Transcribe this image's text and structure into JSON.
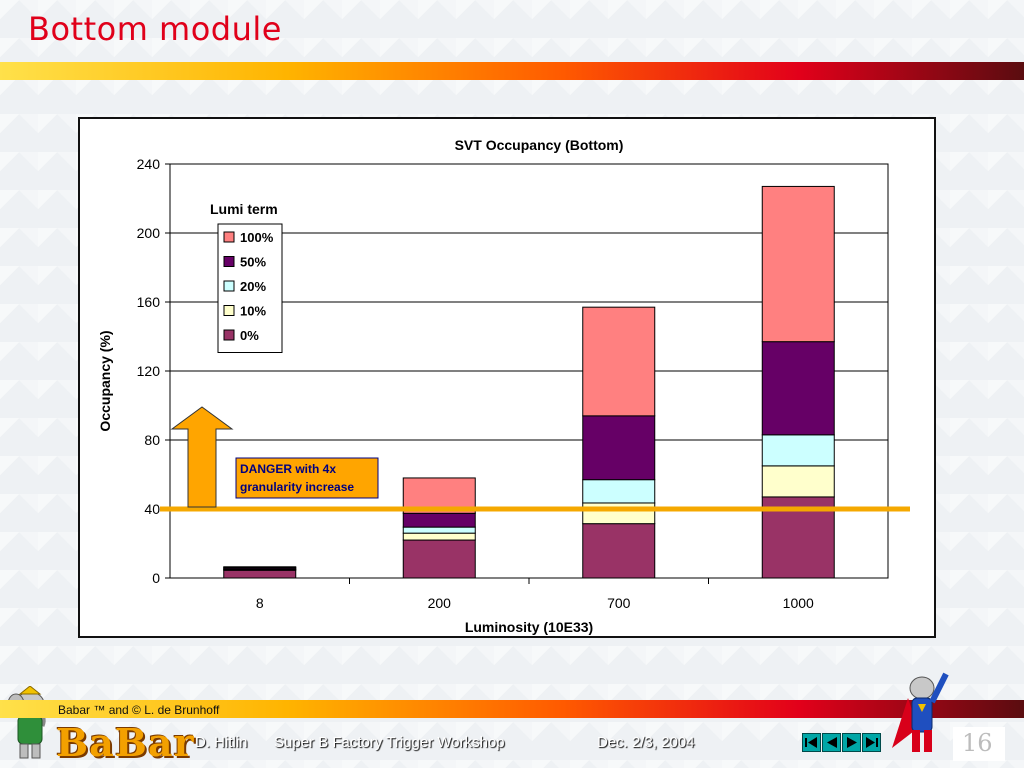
{
  "slide": {
    "title": "Bottom module",
    "credit": "Babar ™ and © L. de Brunhoff",
    "logo": "BaBar",
    "footer_author": "D. Hitlin",
    "footer_event": "Super B Factory Trigger Workshop",
    "footer_date": "Dec. 2/3, 2004",
    "page_number": "16",
    "accent_color": "#e0001a",
    "nav_icons": [
      "first-slide-icon",
      "previous-slide-icon",
      "next-slide-icon",
      "last-slide-icon"
    ]
  },
  "chart_data": {
    "type": "bar",
    "stacked": true,
    "title": "SVT Occupancy (Bottom)",
    "xlabel": "Luminosity (10E33)",
    "ylabel": "Occupancy (%)",
    "categories": [
      "8",
      "200",
      "700",
      "1000"
    ],
    "ylim": [
      0,
      240
    ],
    "yticks": [
      "0",
      "40",
      "80",
      "120",
      "160",
      "200",
      "240"
    ],
    "grid": true,
    "legend_title": "Lumi term",
    "legend_position": "top-left",
    "series": [
      {
        "name": "0%",
        "color": "#993366",
        "values": [
          4.5,
          22,
          31.5,
          47
        ]
      },
      {
        "name": "10%",
        "color": "#ffffcc",
        "values": [
          0.5,
          4,
          12,
          18
        ]
      },
      {
        "name": "20%",
        "color": "#ccffff",
        "values": [
          0.3,
          3.5,
          13.5,
          18
        ]
      },
      {
        "name": "50%",
        "color": "#660066",
        "values": [
          0.7,
          8,
          37,
          54
        ]
      },
      {
        "name": "100%",
        "color": "#ff8080",
        "values": [
          0.5,
          20.5,
          63,
          90
        ]
      }
    ],
    "threshold": {
      "value": 40,
      "color": "#f5a800"
    },
    "annotation": {
      "lines": [
        "DANGER with 4x",
        "granularity increase"
      ],
      "fill": "#ffa500",
      "border": "#000080",
      "text_color": "#000080"
    }
  }
}
